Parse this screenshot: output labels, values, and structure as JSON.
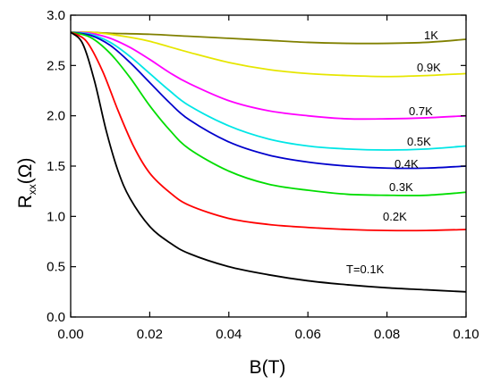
{
  "chart_data": {
    "type": "line",
    "title": "",
    "xlabel": "B(T)",
    "ylabel_main": "R",
    "ylabel_sub": "xx",
    "ylabel_unit": "(Ω)",
    "xlim": [
      0.0,
      0.1
    ],
    "ylim": [
      0.0,
      3.0
    ],
    "xticks": [
      "0.00",
      "0.02",
      "0.04",
      "0.06",
      "0.08",
      "0.10"
    ],
    "yticks": [
      "0.0",
      "0.5",
      "1.0",
      "1.5",
      "2.0",
      "2.5",
      "3.0"
    ],
    "grid": false,
    "series": [
      {
        "name": "1K",
        "color": "#808000",
        "x": [
          0,
          0.005,
          0.01,
          0.02,
          0.03,
          0.04,
          0.05,
          0.06,
          0.07,
          0.08,
          0.09,
          0.1
        ],
        "y": [
          2.83,
          2.83,
          2.82,
          2.81,
          2.79,
          2.77,
          2.75,
          2.73,
          2.72,
          2.72,
          2.73,
          2.76
        ]
      },
      {
        "name": "0.9K",
        "color": "#e6e600",
        "x": [
          0,
          0.005,
          0.01,
          0.015,
          0.02,
          0.03,
          0.04,
          0.05,
          0.06,
          0.07,
          0.08,
          0.09,
          0.1
        ],
        "y": [
          2.83,
          2.83,
          2.81,
          2.78,
          2.74,
          2.63,
          2.53,
          2.46,
          2.42,
          2.4,
          2.39,
          2.4,
          2.42
        ]
      },
      {
        "name": "0.7K",
        "color": "#ff00ff",
        "x": [
          0,
          0.005,
          0.01,
          0.015,
          0.02,
          0.025,
          0.03,
          0.04,
          0.05,
          0.06,
          0.07,
          0.08,
          0.09,
          0.1
        ],
        "y": [
          2.83,
          2.82,
          2.77,
          2.68,
          2.56,
          2.43,
          2.32,
          2.15,
          2.05,
          2.0,
          1.97,
          1.97,
          1.98,
          2.0
        ]
      },
      {
        "name": "0.5K",
        "color": "#00e6e6",
        "x": [
          0,
          0.005,
          0.01,
          0.015,
          0.02,
          0.025,
          0.03,
          0.04,
          0.05,
          0.06,
          0.07,
          0.08,
          0.09,
          0.1
        ],
        "y": [
          2.83,
          2.81,
          2.73,
          2.59,
          2.42,
          2.25,
          2.1,
          1.9,
          1.77,
          1.7,
          1.67,
          1.66,
          1.67,
          1.7
        ]
      },
      {
        "name": "0.4K",
        "color": "#0000cc",
        "x": [
          0,
          0.005,
          0.01,
          0.015,
          0.02,
          0.025,
          0.03,
          0.04,
          0.05,
          0.06,
          0.07,
          0.08,
          0.09,
          0.1
        ],
        "y": [
          2.83,
          2.8,
          2.7,
          2.53,
          2.33,
          2.13,
          1.96,
          1.74,
          1.61,
          1.54,
          1.5,
          1.48,
          1.48,
          1.5
        ]
      },
      {
        "name": "0.3K",
        "color": "#00dd00",
        "x": [
          0,
          0.005,
          0.01,
          0.015,
          0.02,
          0.025,
          0.03,
          0.04,
          0.05,
          0.06,
          0.07,
          0.08,
          0.09,
          0.1
        ],
        "y": [
          2.83,
          2.78,
          2.62,
          2.38,
          2.1,
          1.86,
          1.67,
          1.45,
          1.32,
          1.26,
          1.22,
          1.21,
          1.21,
          1.24
        ]
      },
      {
        "name": "0.2K",
        "color": "#ff0000",
        "x": [
          0,
          0.004,
          0.008,
          0.012,
          0.016,
          0.02,
          0.025,
          0.03,
          0.04,
          0.05,
          0.06,
          0.07,
          0.08,
          0.09,
          0.1
        ],
        "y": [
          2.83,
          2.74,
          2.45,
          2.05,
          1.69,
          1.43,
          1.24,
          1.11,
          0.98,
          0.92,
          0.89,
          0.87,
          0.86,
          0.86,
          0.87
        ]
      },
      {
        "name": "T=0.1K",
        "color": "#000000",
        "x": [
          0,
          0.003,
          0.006,
          0.009,
          0.012,
          0.015,
          0.02,
          0.025,
          0.03,
          0.04,
          0.05,
          0.06,
          0.07,
          0.08,
          0.09,
          0.1
        ],
        "y": [
          2.83,
          2.72,
          2.35,
          1.85,
          1.45,
          1.18,
          0.9,
          0.74,
          0.63,
          0.5,
          0.42,
          0.36,
          0.32,
          0.29,
          0.27,
          0.25
        ]
      }
    ]
  }
}
